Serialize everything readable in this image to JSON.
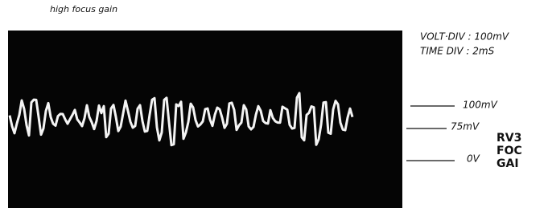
{
  "caption": "high focus gain",
  "settings": {
    "volt_div": "VOLT·DIV : 100mV",
    "time_div": "TIME DIV : 2mS"
  },
  "levels": [
    "100mV",
    "75mV",
    "0V"
  ],
  "label": [
    "RV3",
    "FOC",
    "GAI"
  ]
}
